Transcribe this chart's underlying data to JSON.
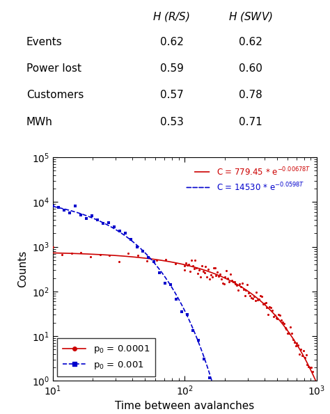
{
  "table": {
    "rows": [
      [
        "Events",
        "0.62",
        "0.62"
      ],
      [
        "Power lost",
        "0.59",
        "0.60"
      ],
      [
        "Customers",
        "0.57",
        "0.78"
      ],
      [
        "MWh",
        "0.53",
        "0.71"
      ]
    ]
  },
  "red_C": 779.45,
  "red_alpha": 0.00678,
  "blue_C": 14530,
  "blue_alpha": 0.0598,
  "x_min": 10,
  "x_max": 1000,
  "y_min": 1,
  "y_max": 100000.0,
  "xlabel": "Time between avalanches",
  "ylabel": "Counts",
  "red_color": "#cc0000",
  "blue_color": "#0000cc"
}
